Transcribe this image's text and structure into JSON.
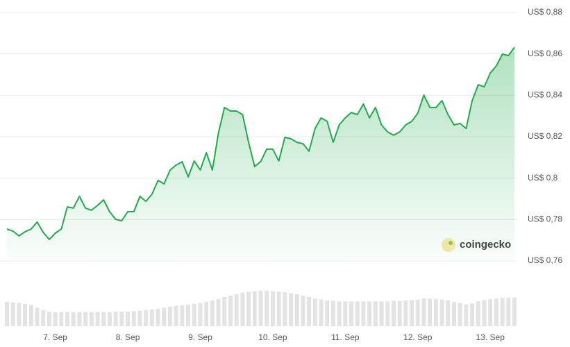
{
  "chart_data": {
    "type": "line",
    "categories": [
      null,
      null,
      null,
      null,
      null,
      null,
      null,
      null,
      "7. Sep",
      null,
      null,
      null,
      null,
      null,
      null,
      null,
      null,
      null,
      null,
      null,
      "8. Sep",
      null,
      null,
      null,
      null,
      null,
      null,
      null,
      null,
      null,
      null,
      null,
      "9. Sep",
      null,
      null,
      null,
      null,
      null,
      null,
      null,
      null,
      null,
      null,
      null,
      "10. Sep",
      null,
      null,
      null,
      null,
      null,
      null,
      null,
      null,
      null,
      null,
      null,
      "11. Sep",
      null,
      null,
      null,
      null,
      null,
      null,
      null,
      null,
      null,
      null,
      null,
      "12. Sep",
      null,
      null,
      null,
      null,
      null,
      null,
      null,
      null,
      null,
      null,
      null,
      "13. Sep",
      null,
      null,
      null,
      null
    ],
    "series": [
      {
        "color": "#1fab4a",
        "values": [
          0.7754,
          0.7744,
          0.7721,
          0.7741,
          0.7754,
          0.7788,
          0.7738,
          0.7704,
          0.7734,
          0.7754,
          0.7861,
          0.7855,
          0.7912,
          0.7855,
          0.7845,
          0.7868,
          0.7895,
          0.7838,
          0.7801,
          0.7794,
          0.7838,
          0.7838,
          0.7912,
          0.7888,
          0.7922,
          0.7989,
          0.7972,
          0.8039,
          0.8063,
          0.8079,
          0.8006,
          0.8083,
          0.8039,
          0.8123,
          0.8039,
          0.8217,
          0.8341,
          0.8324,
          0.8324,
          0.8307,
          0.8173,
          0.8056,
          0.808,
          0.814,
          0.814,
          0.8083,
          0.8197,
          0.819,
          0.8173,
          0.8166,
          0.813,
          0.824,
          0.8291,
          0.8274,
          0.8173,
          0.8257,
          0.8291,
          0.8317,
          0.8307,
          0.8358,
          0.8291,
          0.8341,
          0.8257,
          0.8223,
          0.8207,
          0.8223,
          0.8257,
          0.8274,
          0.8314,
          0.8401,
          0.8341,
          0.8341,
          0.8374,
          0.8307,
          0.8257,
          0.8264,
          0.824,
          0.8374,
          0.8451,
          0.8441,
          0.8508,
          0.8542,
          0.8599,
          0.8592,
          0.8632
        ]
      },
      {
        "type": "bar",
        "axis": "y2",
        "color": "#e3e3e3",
        "values": [
          50,
          49,
          48,
          46,
          44,
          38,
          33,
          30,
          29,
          29,
          29,
          29,
          29,
          29,
          29,
          29,
          29,
          29,
          30,
          30,
          30,
          31,
          32,
          33,
          34,
          36,
          38,
          40,
          42,
          43,
          44,
          46,
          48,
          50,
          53,
          56,
          60,
          63,
          66,
          69,
          71,
          72,
          73,
          73,
          72,
          71,
          70,
          68,
          66,
          63,
          60,
          57,
          55,
          53,
          52,
          51,
          51,
          51,
          51,
          51,
          51,
          51,
          51,
          51,
          52,
          52,
          53,
          54,
          55,
          57,
          57,
          56,
          55,
          53,
          50,
          48,
          45,
          47,
          51,
          54,
          56,
          57,
          58,
          59,
          59
        ]
      }
    ],
    "ylim": [
      0.76,
      0.88
    ],
    "yticks": [
      {
        "value": 0.76,
        "label": "US$ 0,76"
      },
      {
        "value": 0.78,
        "label": "US$ 0,78"
      },
      {
        "value": 0.8,
        "label": "US$ 0,8"
      },
      {
        "value": 0.82,
        "label": "US$ 0,82"
      },
      {
        "value": 0.84,
        "label": "US$ 0,84"
      },
      {
        "value": 0.86,
        "label": "US$ 0,86"
      },
      {
        "value": 0.88,
        "label": "US$ 0,88"
      }
    ],
    "y2lim": [
      0,
      100
    ],
    "grid": true,
    "watermark": "coingecko"
  }
}
